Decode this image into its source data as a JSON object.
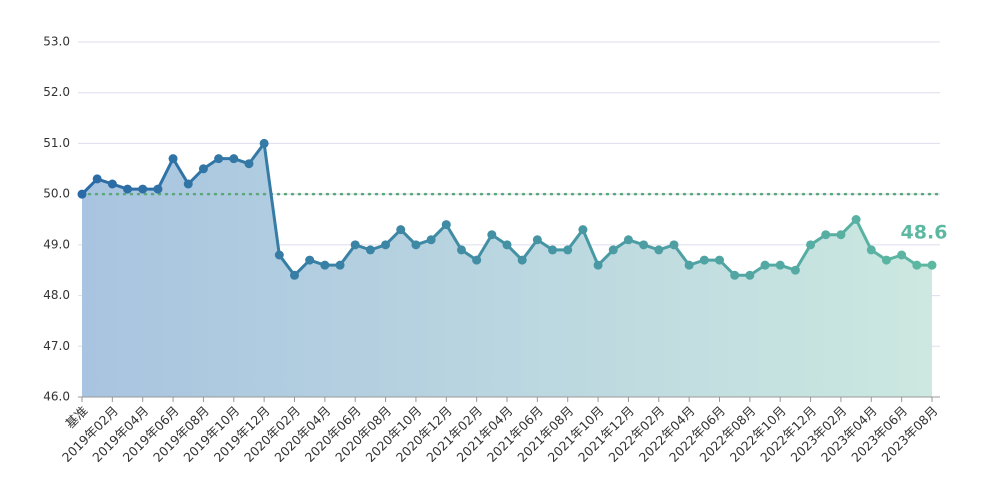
{
  "chart_data": {
    "type": "area-line",
    "categories": [
      "基准",
      null,
      "2019年02月",
      null,
      "2019年04月",
      null,
      "2019年06月",
      null,
      "2019年08月",
      null,
      "2019年10月",
      null,
      "2019年12月",
      null,
      "2020年02月",
      null,
      "2020年04月",
      null,
      "2020年06月",
      null,
      "2020年08月",
      null,
      "2020年10月",
      null,
      "2020年12月",
      null,
      "2021年02月",
      null,
      "2021年04月",
      null,
      "2021年06月",
      null,
      "2021年08月",
      null,
      "2021年10月",
      null,
      "2021年12月",
      null,
      "2022年02月",
      null,
      "2022年04月",
      null,
      "2022年06月",
      null,
      "2022年08月",
      null,
      "2022年10月",
      null,
      "2022年12月",
      null,
      "2023年02月",
      null,
      "2023年04月",
      null,
      "2023年06月",
      null,
      "2023年08月"
    ],
    "values": [
      50.0,
      50.3,
      50.2,
      50.1,
      50.1,
      50.1,
      50.7,
      50.2,
      50.5,
      50.7,
      50.7,
      50.6,
      51.0,
      48.8,
      48.4,
      48.7,
      48.6,
      48.6,
      49.0,
      48.9,
      49.0,
      49.3,
      49.0,
      49.1,
      49.4,
      48.9,
      48.7,
      49.2,
      49.0,
      48.7,
      49.1,
      48.9,
      48.9,
      49.3,
      48.6,
      48.9,
      49.1,
      49.0,
      48.9,
      49.0,
      48.6,
      48.7,
      48.7,
      48.4,
      48.4,
      48.6,
      48.6,
      48.5,
      49.0,
      49.2,
      49.2,
      49.5,
      48.9,
      48.7,
      48.8,
      48.6,
      48.6
    ],
    "colors": [
      "#2a6aa6",
      "#5db8a2"
    ],
    "area_colors": [
      "#a8c4e0",
      "#cce8e0"
    ],
    "reference_line": 50.0,
    "reference_color": "#5aa87a",
    "annotation": "48.6",
    "ylim": [
      46.0,
      53.0
    ],
    "yticks": [
      {
        "value": 46,
        "label": "46.0"
      },
      {
        "value": 47,
        "label": "47.0"
      },
      {
        "value": 48,
        "label": "48.0"
      },
      {
        "value": 49,
        "label": "49.0"
      },
      {
        "value": 50,
        "label": "50.0"
      },
      {
        "value": 51,
        "label": "51.0"
      },
      {
        "value": 52,
        "label": "52.0"
      },
      {
        "value": 53,
        "label": "53.0"
      }
    ],
    "grid": true
  }
}
